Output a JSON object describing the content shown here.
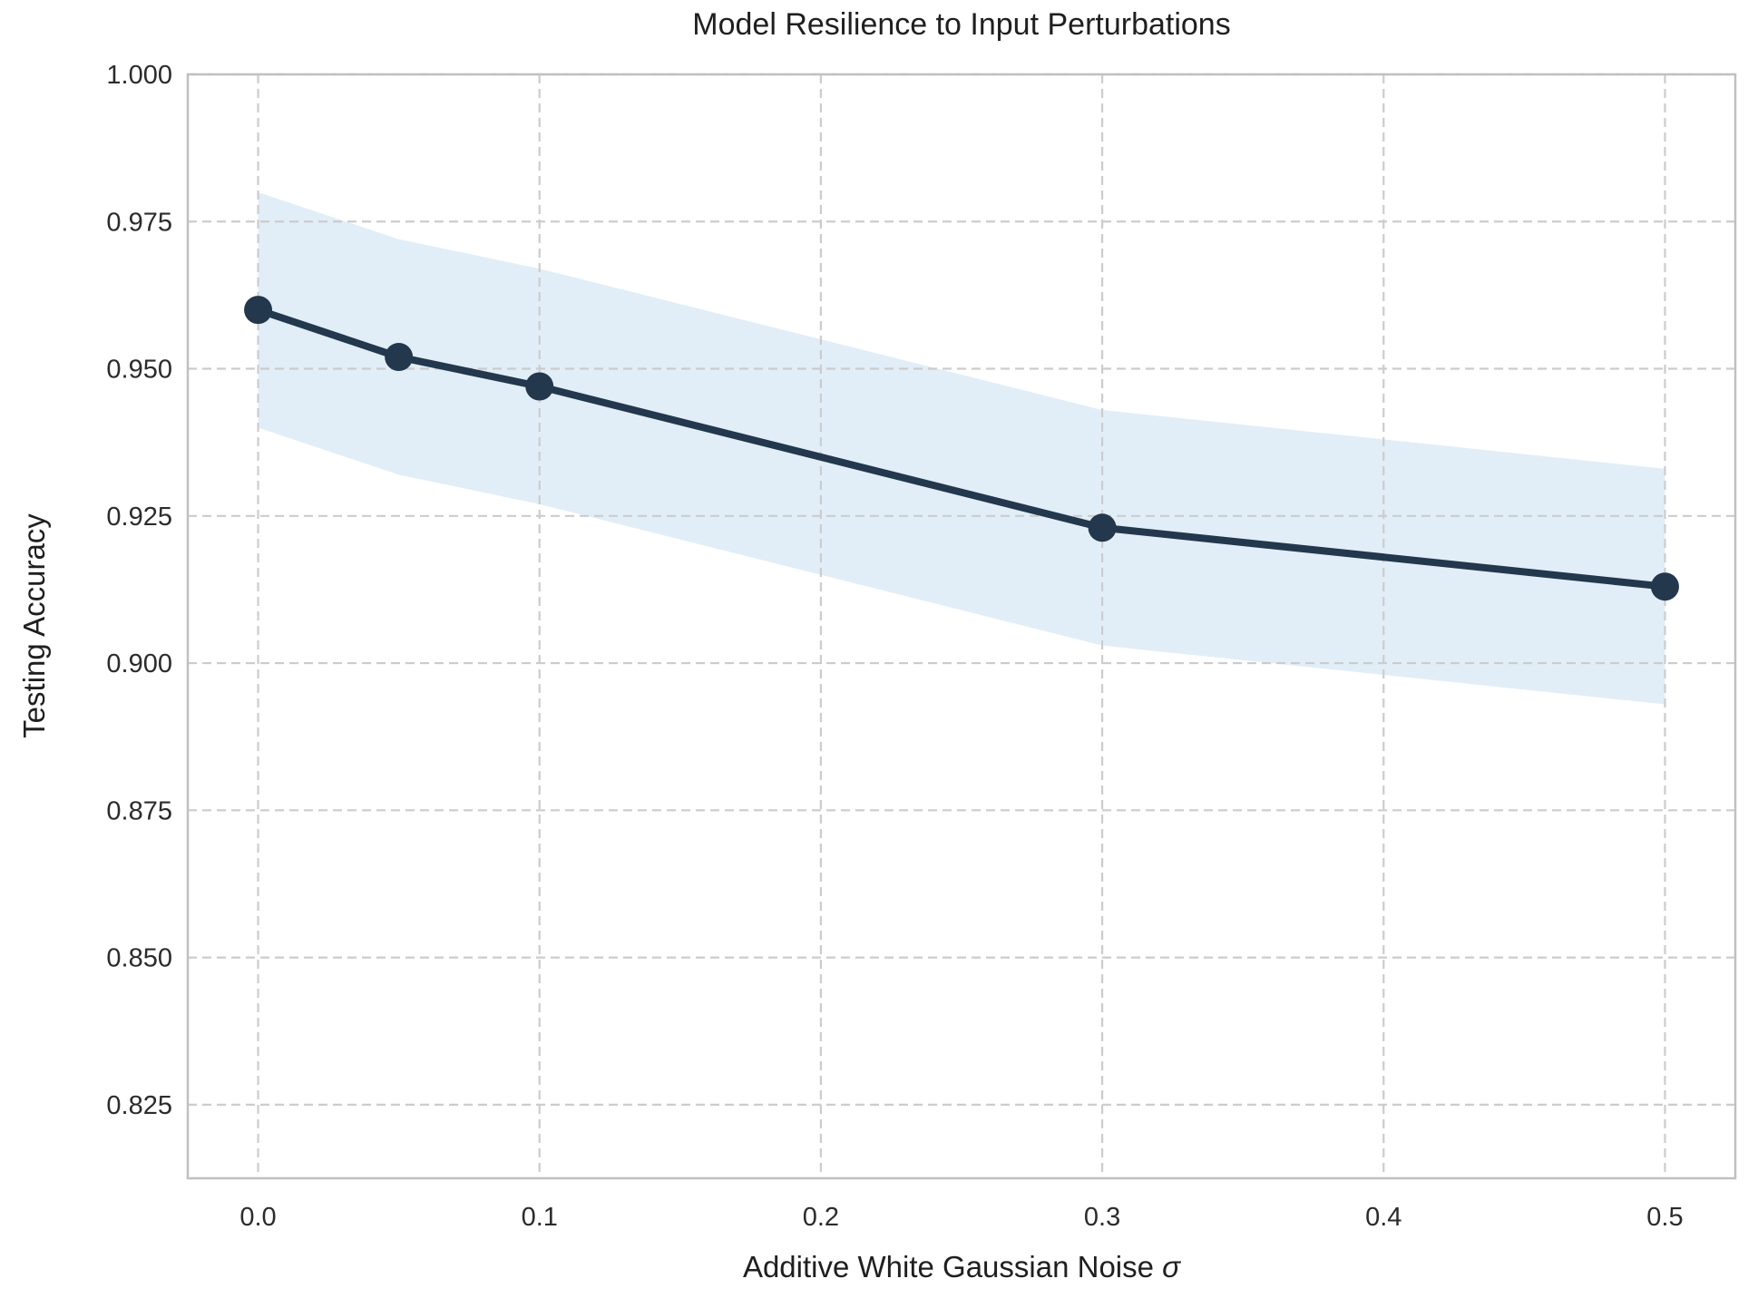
{
  "figure": {
    "title": "Model Resilience to Input Perturbations",
    "xlabel_prefix": "Additive White Gaussian Noise ",
    "xlabel_symbol": "σ",
    "ylabel": "Testing Accuracy"
  },
  "chart_data": {
    "type": "line",
    "title": "Model Resilience to Input Perturbations",
    "xlabel": "Additive White Gaussian Noise σ",
    "ylabel": "Testing Accuracy",
    "x": [
      0.0,
      0.05,
      0.1,
      0.3,
      0.5
    ],
    "y": [
      0.96,
      0.952,
      0.947,
      0.923,
      0.913
    ],
    "band_upper": [
      0.98,
      0.972,
      0.967,
      0.943,
      0.933
    ],
    "band_lower": [
      0.94,
      0.932,
      0.927,
      0.903,
      0.893
    ],
    "x_ticks": [
      0.0,
      0.1,
      0.2,
      0.3,
      0.4,
      0.5
    ],
    "x_tick_labels": [
      "0.0",
      "0.1",
      "0.2",
      "0.3",
      "0.4",
      "0.5"
    ],
    "y_ticks": [
      0.825,
      0.85,
      0.875,
      0.9,
      0.925,
      0.95,
      0.975,
      1.0
    ],
    "y_tick_labels": [
      "0.825",
      "0.850",
      "0.875",
      "0.900",
      "0.925",
      "0.950",
      "0.975",
      "1.000"
    ],
    "xlim": [
      -0.025,
      0.525
    ],
    "ylim": [
      0.8125,
      1.0
    ],
    "grid": true,
    "legend": "none",
    "colors": {
      "line": "#23374d",
      "marker": "#23374d",
      "band": "#e1eef8",
      "grid": "#cccccc",
      "spine": "#c0c0c0",
      "text": "#2b2b2b"
    }
  }
}
